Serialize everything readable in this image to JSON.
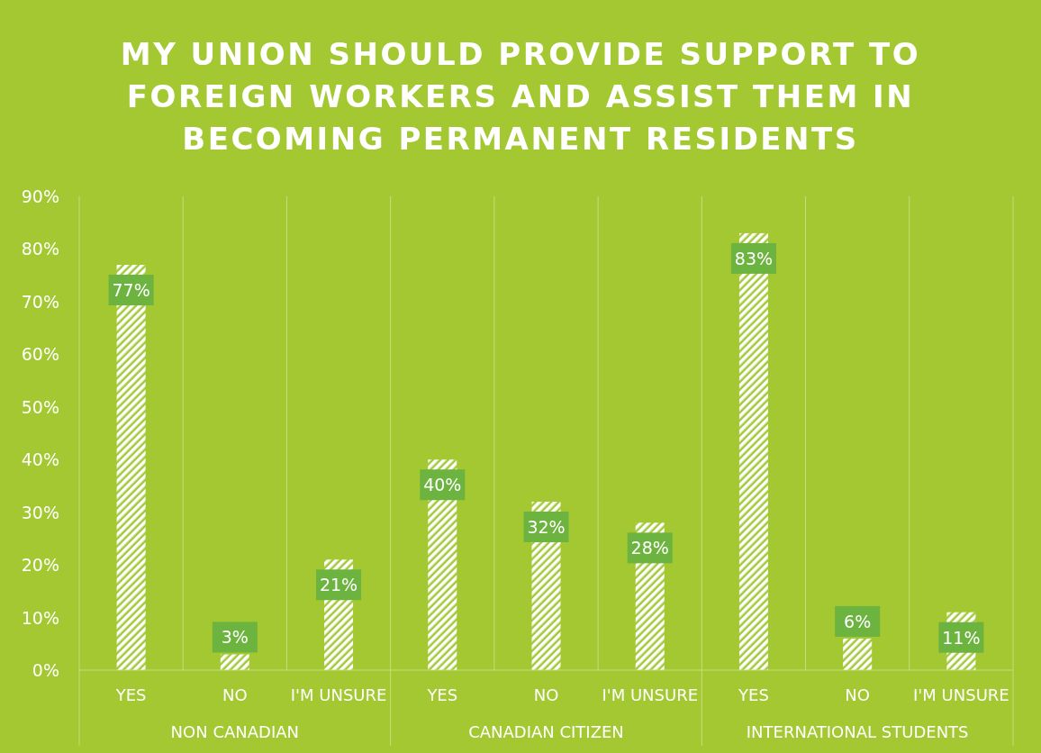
{
  "chart_data": {
    "type": "bar",
    "title": "MY UNION SHOULD PROVIDE SUPPORT TO FOREIGN WORKERS AND ASSIST THEM IN BECOMING PERMANENT RESIDENTS",
    "categories": [
      "YES",
      "NO",
      "I'M UNSURE",
      "YES",
      "NO",
      "I'M UNSURE",
      "YES",
      "NO",
      "I'M UNSURE"
    ],
    "annotations": [
      "NON CANADIAN",
      "CANADIAN CITIZEN",
      "INTERNATIONAL STUDENTS"
    ],
    "values": [
      77,
      3,
      21,
      40,
      32,
      28,
      83,
      6,
      11
    ],
    "color": "#ffffff",
    "ylim": [
      0,
      90
    ],
    "yticks": [
      {
        "value": 0,
        "label": "0%"
      },
      {
        "value": 10,
        "label": "10%"
      },
      {
        "value": 20,
        "label": "20%"
      },
      {
        "value": 30,
        "label": "30%"
      },
      {
        "value": 40,
        "label": "40%"
      },
      {
        "value": 50,
        "label": "50%"
      },
      {
        "value": 60,
        "label": "60%"
      },
      {
        "value": 70,
        "label": "70%"
      },
      {
        "value": 80,
        "label": "80%"
      },
      {
        "value": 90,
        "label": "90%"
      }
    ],
    "value_labels": [
      "77%",
      "3%",
      "21%",
      "40%",
      "32%",
      "28%",
      "83%",
      "6%",
      "11%"
    ],
    "grid": "x"
  }
}
